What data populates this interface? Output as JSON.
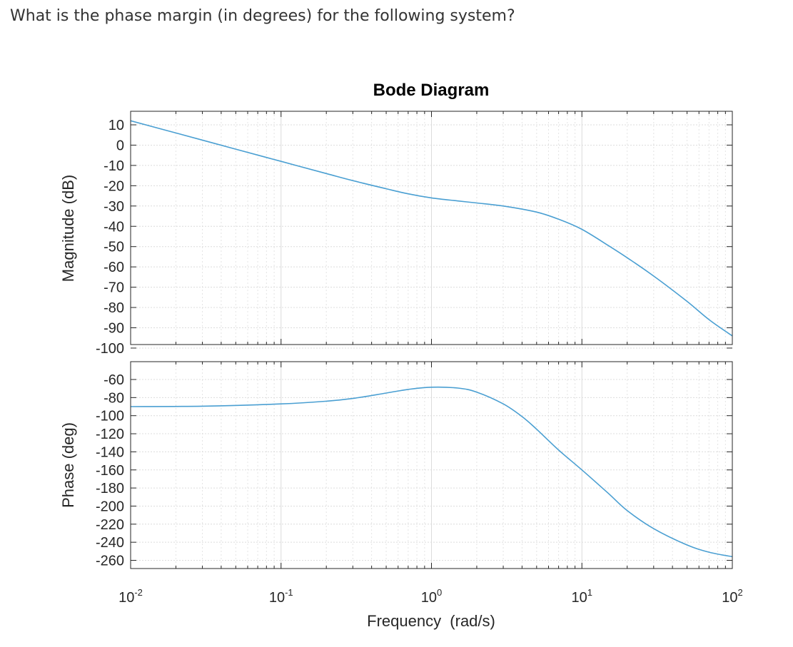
{
  "question": "What is the phase margin (in degrees) for the following system?",
  "chart_data": {
    "type": "line",
    "title": "Bode Diagram",
    "xlabel": "Frequency  (rad/s)",
    "x_scale": "log",
    "xlim": [
      0.01,
      100
    ],
    "x_ticks": [
      {
        "base": "10",
        "exp": "-2",
        "value": 0.01
      },
      {
        "base": "10",
        "exp": "-1",
        "value": 0.1
      },
      {
        "base": "10",
        "exp": "0",
        "value": 1
      },
      {
        "base": "10",
        "exp": "1",
        "value": 10
      },
      {
        "base": "10",
        "exp": "2",
        "value": 100
      }
    ],
    "grid": true,
    "line_color": "#4a9fd2",
    "panels": [
      {
        "name": "magnitude",
        "ylabel": "Magnitude (dB)",
        "ylim": [
          -100,
          15
        ],
        "yticks": [
          10,
          0,
          -10,
          -20,
          -30,
          -40,
          -50,
          -60,
          -70,
          -80,
          -90,
          -100
        ],
        "series": [
          {
            "x": [
              0.01,
              0.02,
              0.05,
              0.1,
              0.2,
              0.3,
              0.5,
              0.7,
              1,
              1.5,
              2,
              3,
              5,
              7,
              10,
              15,
              20,
              30,
              50,
              70,
              100
            ],
            "y": [
              12,
              6,
              -2,
              -8,
              -14,
              -17.5,
              -21.5,
              -24,
              -26,
              -27.5,
              -28.5,
              -30,
              -33,
              -36.5,
              -41.5,
              -49.5,
              -55.5,
              -64.5,
              -77,
              -86,
              -94
            ]
          }
        ]
      },
      {
        "name": "phase",
        "ylabel": "Phase (deg)",
        "ylim": [
          -265,
          -50
        ],
        "yticks": [
          -60,
          -80,
          -100,
          -120,
          -140,
          -160,
          -180,
          -200,
          -220,
          -240,
          -260
        ],
        "series": [
          {
            "x": [
              0.01,
              0.03,
              0.1,
              0.2,
              0.3,
              0.5,
              0.7,
              1,
              1.5,
              2,
              3,
              4,
              5,
              7,
              10,
              15,
              20,
              30,
              50,
              70,
              100
            ],
            "y": [
              -90,
              -89.5,
              -87,
              -84,
              -81,
              -75,
              -71,
              -68.5,
              -69.5,
              -74,
              -87,
              -101,
              -115,
              -138,
              -160,
              -186,
              -205,
              -225,
              -243,
              -251,
              -256
            ]
          }
        ]
      }
    ]
  }
}
